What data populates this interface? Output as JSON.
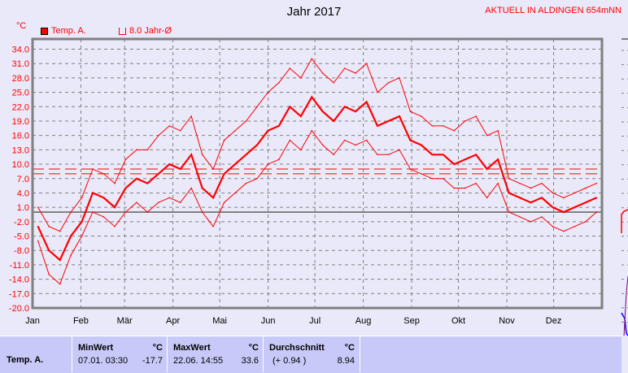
{
  "header": {
    "title": "Jahr 2017",
    "subtitle": "AKTUELL IN ALDINGEN 654mNN",
    "unit": "°C"
  },
  "legend": [
    {
      "label": "Temp. A.",
      "color": "#ff0000",
      "style": "filled"
    },
    {
      "label": "8.0 Jahr-Ø",
      "color": "#ff0000",
      "style": "outline"
    }
  ],
  "chart_data": {
    "type": "line",
    "title": "Jahr 2017",
    "ylabel": "°C",
    "ylim": [
      -20,
      34
    ],
    "yticks": [
      "34.0",
      "31.0",
      "28.0",
      "25.0",
      "22.0",
      "19.0",
      "16.0",
      "13.0",
      "10.0",
      "7.0",
      "4.0",
      "1.0",
      "-2.0",
      "-5.0",
      "-8.0",
      "-11.0",
      "-14.0",
      "-17.0",
      "-20.0"
    ],
    "xticks": [
      "Jan",
      "Feb",
      "Mär",
      "Apr",
      "Mai",
      "Jun",
      "Jul",
      "Aug",
      "Sep",
      "Okt",
      "Nov",
      "Dez"
    ],
    "x_unit": "week of year",
    "grid": true,
    "reference_line": {
      "label": "8.0 Jahr-Ø",
      "value": 8.0
    },
    "zero_line": 0,
    "color": "#ff0000",
    "series": [
      {
        "name": "Temp. A.",
        "role": "mean",
        "values": [
          -3,
          -8,
          -10,
          -5,
          -2,
          4,
          3,
          1,
          5,
          7,
          6,
          8,
          10,
          9,
          12,
          5,
          3,
          8,
          10,
          12,
          14,
          17,
          18,
          22,
          20,
          24,
          21,
          19,
          22,
          21,
          23,
          18,
          19,
          20,
          15,
          14,
          12,
          12,
          10,
          11,
          12,
          9,
          11,
          4,
          3,
          2,
          3,
          1,
          0,
          1,
          2,
          3
        ]
      },
      {
        "role": "max",
        "values": [
          1,
          -3,
          -4,
          0,
          3,
          9,
          8,
          6,
          11,
          13,
          13,
          16,
          18,
          17,
          20,
          12,
          9,
          15,
          17,
          19,
          22,
          25,
          27,
          30,
          28,
          32,
          29,
          27,
          30,
          29,
          31,
          25,
          27,
          28,
          21,
          20,
          18,
          18,
          17,
          19,
          20,
          16,
          17,
          7,
          6,
          5,
          6,
          4,
          3,
          4,
          5,
          6
        ]
      },
      {
        "role": "min",
        "values": [
          -6,
          -13,
          -15,
          -9,
          -5,
          0,
          -1,
          -3,
          0,
          2,
          0,
          2,
          3,
          2,
          5,
          0,
          -3,
          2,
          4,
          6,
          7,
          10,
          11,
          15,
          13,
          17,
          14,
          12,
          15,
          14,
          15,
          12,
          12,
          13,
          9,
          8,
          7,
          7,
          5,
          5,
          6,
          3,
          6,
          0,
          -1,
          -2,
          -1,
          -3,
          -4,
          -3,
          -2,
          0
        ]
      }
    ]
  },
  "stats": {
    "row_label": "Temp. A.",
    "min": {
      "header": "MinWert",
      "unit": "°C",
      "datetime": "07.01.  03:30",
      "value": "-17.7"
    },
    "max": {
      "header": "MaxWert",
      "unit": "°C",
      "datetime": "22.06.  14:55",
      "value": "33.6"
    },
    "avg": {
      "header": "Durchschnitt",
      "unit": "°C",
      "deviation": "(+ 0.94 )",
      "value": "8.94"
    }
  }
}
